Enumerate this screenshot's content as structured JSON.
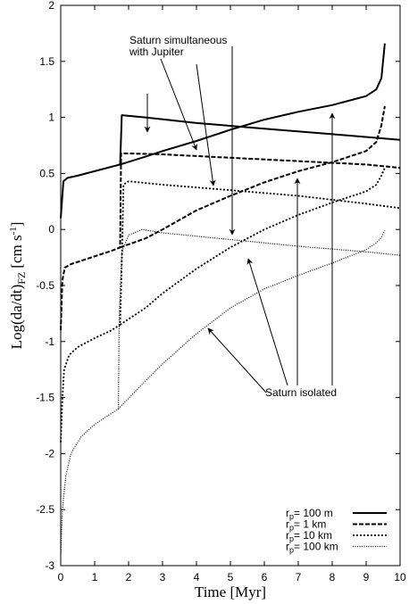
{
  "chart_data": {
    "type": "line",
    "xlabel": "Time [Myr]",
    "ylabel": "Log(da/dt)",
    "ylabel_sub": "FZ",
    "ylabel_unit": "[cm s",
    "ylabel_exp": "-1",
    "ylabel_close": "]",
    "xlim": [
      0,
      10
    ],
    "ylim": [
      -3,
      2
    ],
    "x_ticks": [
      "0",
      "1",
      "2",
      "3",
      "4",
      "5",
      "6",
      "7",
      "8",
      "9",
      "10"
    ],
    "y_ticks": [
      "-3",
      "-2.5",
      "-2",
      "-1.5",
      "-1",
      "-0.5",
      "0",
      "0.5",
      "1",
      "1.5",
      "2"
    ],
    "legend": {
      "position": "bottom-right",
      "r": "r",
      "p": "p",
      "entries": [
        {
          "size": "=   100 m"
        },
        {
          "size": "=     1 km"
        },
        {
          "size": "=   10 km"
        },
        {
          "size": "= 100 km"
        }
      ]
    },
    "annotations": {
      "simultaneous": [
        "Saturn simultaneous",
        "with Jupiter"
      ],
      "isolated": "Saturn isolated"
    },
    "series": [
      {
        "size": "100 m",
        "style": "solid",
        "simultaneous": [
          [
            0.0,
            0.1
          ],
          [
            0.08,
            0.43
          ],
          [
            0.2,
            0.46
          ],
          [
            0.5,
            0.48
          ],
          [
            1.0,
            0.52
          ],
          [
            1.5,
            0.56
          ],
          [
            1.75,
            0.58
          ],
          [
            1.8,
            1.02
          ],
          [
            2.5,
            1.0
          ],
          [
            4.0,
            0.95
          ],
          [
            6.0,
            0.9
          ],
          [
            8.0,
            0.85
          ],
          [
            10.0,
            0.8
          ]
        ],
        "isolated": [
          [
            1.75,
            0.58
          ],
          [
            2.5,
            0.65
          ],
          [
            3.0,
            0.7
          ],
          [
            4.0,
            0.79
          ],
          [
            5.0,
            0.89
          ],
          [
            6.0,
            0.98
          ],
          [
            7.0,
            1.05
          ],
          [
            8.0,
            1.11
          ],
          [
            9.0,
            1.19
          ],
          [
            9.3,
            1.25
          ],
          [
            9.45,
            1.35
          ],
          [
            9.55,
            1.66
          ]
        ]
      },
      {
        "size": "1 km",
        "style": "dashed",
        "simultaneous": [
          [
            0.0,
            -0.9
          ],
          [
            0.05,
            -0.45
          ],
          [
            0.12,
            -0.34
          ],
          [
            0.3,
            -0.31
          ],
          [
            0.6,
            -0.28
          ],
          [
            1.0,
            -0.24
          ],
          [
            1.5,
            -0.19
          ],
          [
            1.75,
            -0.16
          ],
          [
            1.78,
            0.68
          ],
          [
            3.0,
            0.67
          ],
          [
            5.0,
            0.64
          ],
          [
            7.0,
            0.61
          ],
          [
            9.0,
            0.58
          ],
          [
            10.0,
            0.55
          ]
        ],
        "isolated": [
          [
            1.75,
            -0.16
          ],
          [
            2.5,
            -0.08
          ],
          [
            3.0,
            0.0
          ],
          [
            4.0,
            0.17
          ],
          [
            5.0,
            0.3
          ],
          [
            6.0,
            0.42
          ],
          [
            7.0,
            0.52
          ],
          [
            8.0,
            0.6
          ],
          [
            9.0,
            0.7
          ],
          [
            9.3,
            0.78
          ],
          [
            9.45,
            0.93
          ],
          [
            9.55,
            1.1
          ]
        ]
      },
      {
        "size": "10 km",
        "style": "dotted",
        "simultaneous": [
          [
            0.0,
            -1.9
          ],
          [
            0.05,
            -1.5
          ],
          [
            0.1,
            -1.25
          ],
          [
            0.25,
            -1.12
          ],
          [
            0.5,
            -1.05
          ],
          [
            1.0,
            -0.97
          ],
          [
            1.5,
            -0.9
          ],
          [
            1.75,
            -0.85
          ],
          [
            1.8,
            -0.3
          ],
          [
            1.85,
            0.4
          ],
          [
            2.0,
            0.43
          ],
          [
            3.0,
            0.4
          ],
          [
            5.0,
            0.35
          ],
          [
            7.0,
            0.3
          ],
          [
            9.0,
            0.23
          ],
          [
            10.0,
            0.19
          ]
        ],
        "isolated": [
          [
            1.75,
            -0.85
          ],
          [
            2.5,
            -0.7
          ],
          [
            3.0,
            -0.57
          ],
          [
            4.0,
            -0.35
          ],
          [
            5.0,
            -0.16
          ],
          [
            6.0,
            0.0
          ],
          [
            7.0,
            0.13
          ],
          [
            8.0,
            0.24
          ],
          [
            9.0,
            0.34
          ],
          [
            9.3,
            0.4
          ],
          [
            9.45,
            0.48
          ],
          [
            9.55,
            0.55
          ]
        ]
      },
      {
        "size": "100 km",
        "style": "fine-dotted",
        "simultaneous": [
          [
            0.0,
            -2.9
          ],
          [
            0.05,
            -2.5
          ],
          [
            0.15,
            -2.2
          ],
          [
            0.3,
            -2.0
          ],
          [
            0.6,
            -1.85
          ],
          [
            1.0,
            -1.74
          ],
          [
            1.5,
            -1.64
          ],
          [
            1.7,
            -1.6
          ],
          [
            1.72,
            -0.8
          ],
          [
            1.8,
            -0.2
          ],
          [
            2.0,
            -0.05
          ],
          [
            2.4,
            0.0
          ],
          [
            3.0,
            -0.03
          ],
          [
            5.0,
            -0.09
          ],
          [
            7.0,
            -0.15
          ],
          [
            9.0,
            -0.2
          ],
          [
            10.0,
            -0.23
          ]
        ],
        "isolated": [
          [
            1.7,
            -1.6
          ],
          [
            2.5,
            -1.35
          ],
          [
            3.0,
            -1.2
          ],
          [
            4.0,
            -0.93
          ],
          [
            5.0,
            -0.7
          ],
          [
            6.0,
            -0.53
          ],
          [
            7.0,
            -0.41
          ],
          [
            8.0,
            -0.3
          ],
          [
            9.0,
            -0.18
          ],
          [
            9.3,
            -0.12
          ],
          [
            9.45,
            -0.07
          ],
          [
            9.55,
            -0.01
          ]
        ]
      }
    ]
  }
}
